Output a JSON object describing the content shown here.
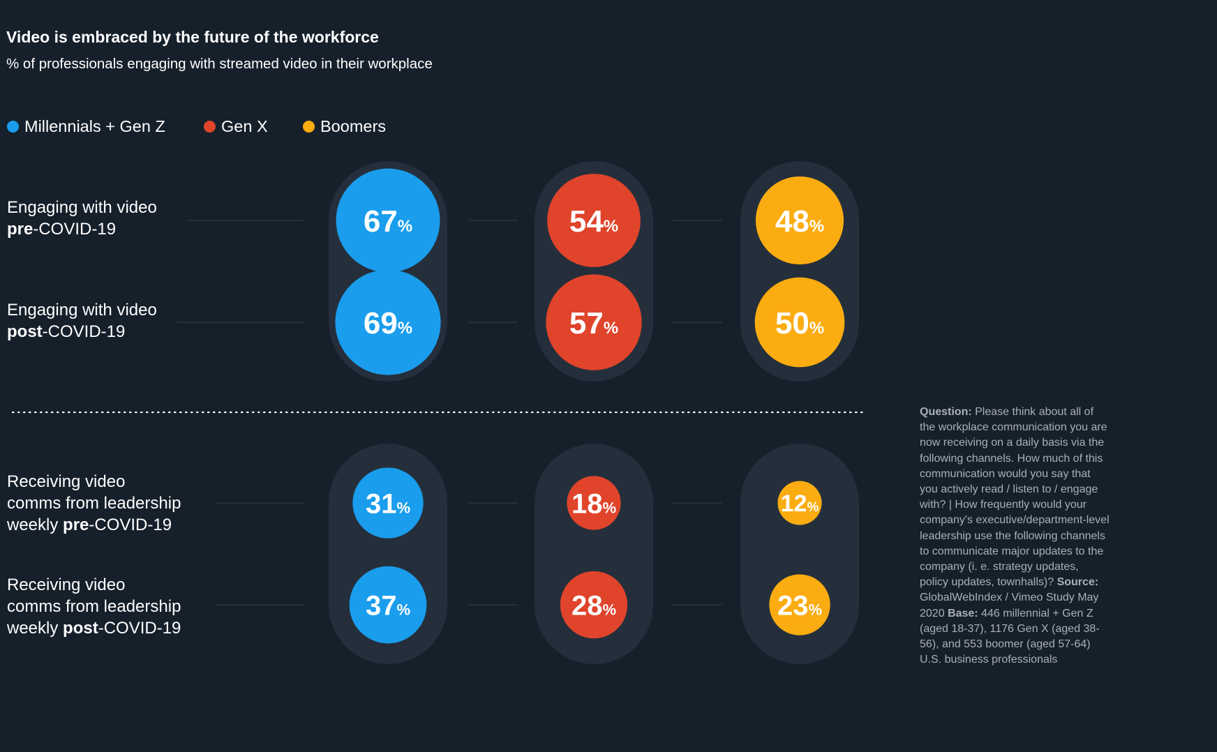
{
  "title": "Video is embraced by the future of the workforce",
  "subtitle": "% of professionals engaging with streamed video in their workplace",
  "legend": [
    {
      "label": "Millennials + Gen Z",
      "color": "#1a9ded"
    },
    {
      "label": "Gen X",
      "color": "#e0442b"
    },
    {
      "label": "Boomers",
      "color": "#fbac10"
    }
  ],
  "row_labels": [
    {
      "line1": "Engaging with video",
      "bold": "pre",
      "rest": "-COVID-19"
    },
    {
      "line1": "Engaging with video",
      "bold": "post",
      "rest": "-COVID-19"
    },
    {
      "line1": "Receiving video",
      "line2": "comms from leadership",
      "prefix": "weekly ",
      "bold": "pre",
      "rest": "-COVID-19"
    },
    {
      "line1": "Receiving video",
      "line2": "comms from leadership",
      "prefix": "weekly ",
      "bold": "post",
      "rest": "-COVID-19"
    }
  ],
  "note": {
    "question_label": "Question:",
    "question_text": "Please think about all of the workplace communication you are now receiving on a daily basis via the following channels. How much of this communication would you say that you actively read / listen to / engage with? | How frequently would your company's executive/department-level leadership use the following channels to communicate major updates to the company (i. e. strategy updates, policy updates, townhalls)?",
    "source_label": "Source:",
    "source_text": "GlobalWebIndex / Vimeo Study May 2020",
    "base_label": "Base:",
    "base_text": "446 millennial + Gen Z (aged 18-37), 1176 Gen X (aged 38-56), and 553 boomer (aged 57-64) U.S. business professionals"
  },
  "chart_data": {
    "type": "bubble",
    "unit": "%",
    "categories": [
      "Engaging with video pre-COVID-19",
      "Engaging with video post-COVID-19",
      "Receiving video comms from leadership weekly pre-COVID-19",
      "Receiving video comms from leadership weekly post-COVID-19"
    ],
    "series": [
      {
        "name": "Millennials + Gen Z",
        "color": "#1a9ded",
        "values": [
          67,
          69,
          31,
          37
        ]
      },
      {
        "name": "Gen X",
        "color": "#e0442b",
        "values": [
          54,
          57,
          18,
          28
        ]
      },
      {
        "name": "Boomers",
        "color": "#fbac10",
        "values": [
          48,
          50,
          12,
          23
        ]
      }
    ]
  }
}
